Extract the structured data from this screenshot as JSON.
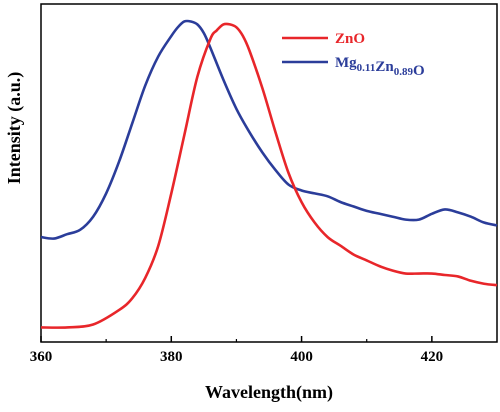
{
  "chart_data": {
    "type": "line",
    "title": "",
    "xlabel": "Wavelength(nm)",
    "ylabel": "Intensity (a.u.)",
    "xlim": [
      360,
      430
    ],
    "ylim": [
      0,
      1.16
    ],
    "x_ticks": [
      360,
      380,
      400,
      420
    ],
    "x_tick_labels": [
      "360",
      "380",
      "400",
      "420"
    ],
    "y_ticks": [],
    "grid": false,
    "legend_position": "top-right",
    "series": [
      {
        "name": "ZnO",
        "label_parts": [
          {
            "text": "ZnO",
            "sub": false
          }
        ],
        "color": "#e8262a",
        "x": [
          360,
          364,
          368,
          372,
          374,
          376,
          378,
          380,
          382,
          384,
          386,
          387,
          388,
          389,
          390,
          391,
          392,
          394,
          396,
          398,
          400,
          402,
          404,
          406,
          408,
          410,
          412,
          414,
          416,
          418,
          420,
          422,
          424,
          426,
          428,
          430
        ],
        "y": [
          0.05,
          0.05,
          0.06,
          0.11,
          0.15,
          0.22,
          0.33,
          0.51,
          0.71,
          0.91,
          1.04,
          1.07,
          1.09,
          1.09,
          1.08,
          1.05,
          1.0,
          0.87,
          0.72,
          0.58,
          0.48,
          0.41,
          0.36,
          0.33,
          0.3,
          0.28,
          0.26,
          0.245,
          0.235,
          0.235,
          0.235,
          0.23,
          0.225,
          0.21,
          0.2,
          0.195
        ]
      },
      {
        "name": "Mg0.11Zn0.89O",
        "label_parts": [
          {
            "text": "Mg",
            "sub": false
          },
          {
            "text": "0.11",
            "sub": true
          },
          {
            "text": "Zn",
            "sub": false
          },
          {
            "text": "0.89",
            "sub": true
          },
          {
            "text": "O",
            "sub": false
          }
        ],
        "color": "#2b3d9a",
        "x": [
          360,
          362,
          364,
          366,
          368,
          370,
          372,
          374,
          376,
          378,
          380,
          381,
          382,
          383,
          384,
          385,
          386,
          388,
          390,
          392,
          394,
          396,
          398,
          400,
          402,
          404,
          406,
          408,
          410,
          412,
          414,
          416,
          418,
          420,
          422,
          424,
          426,
          428,
          430
        ],
        "y": [
          0.36,
          0.355,
          0.37,
          0.385,
          0.43,
          0.51,
          0.62,
          0.75,
          0.88,
          0.98,
          1.05,
          1.08,
          1.1,
          1.1,
          1.09,
          1.06,
          1.01,
          0.9,
          0.8,
          0.72,
          0.65,
          0.59,
          0.54,
          0.52,
          0.51,
          0.5,
          0.48,
          0.465,
          0.45,
          0.44,
          0.43,
          0.42,
          0.42,
          0.44,
          0.455,
          0.445,
          0.43,
          0.41,
          0.4
        ]
      }
    ]
  }
}
